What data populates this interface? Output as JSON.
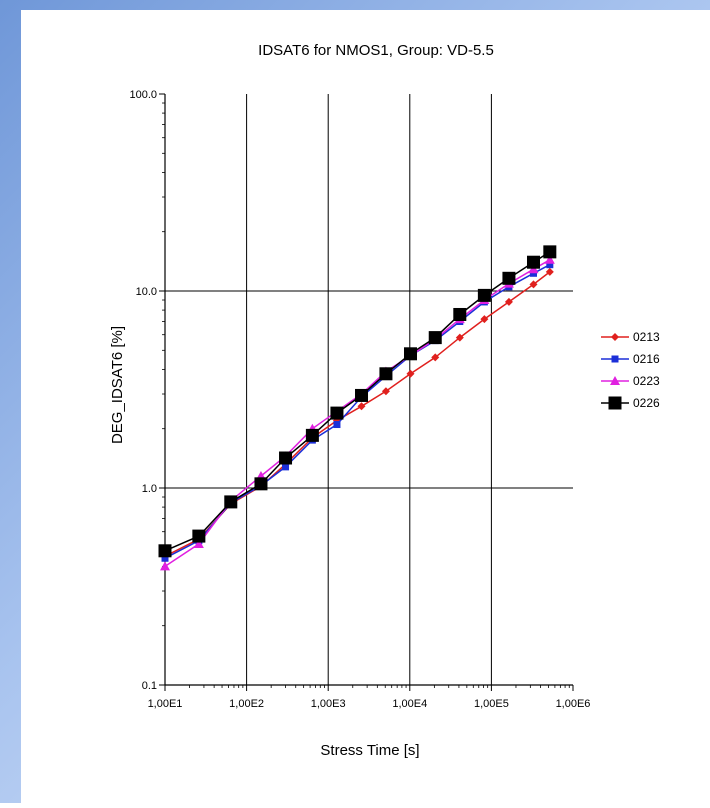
{
  "chart_data": {
    "type": "line",
    "title": "IDSAT6 for NMOS1, Group: VD-5.5",
    "xlabel": "Stress Time [s]",
    "ylabel": "DEG_IDSAT6 [%]",
    "x_scale": "log",
    "y_scale": "log",
    "xlim": [
      10,
      1000000
    ],
    "ylim": [
      0.1,
      100
    ],
    "x_ticks": [
      10,
      100,
      1000,
      10000,
      100000,
      1000000
    ],
    "x_tick_labels": [
      "1,00E1",
      "1,00E2",
      "1,00E3",
      "1,00E4",
      "1,00E5",
      "1,00E6"
    ],
    "y_ticks": [
      0.1,
      1,
      10,
      100
    ],
    "y_tick_labels": [
      "0.1",
      "1.0",
      "10.0",
      "100.0"
    ],
    "grid": true,
    "legend_position": "right",
    "series": [
      {
        "name": "0213",
        "color": "#e0201e",
        "marker": "diamond",
        "x": [
          10,
          26,
          64,
          150,
          300,
          640,
          1280,
          2560,
          5100,
          10200,
          20500,
          41000,
          82000,
          164000,
          328000,
          520000
        ],
        "values": [
          0.45,
          0.55,
          0.83,
          1.02,
          1.32,
          1.8,
          2.2,
          2.6,
          3.1,
          3.8,
          4.6,
          5.8,
          7.2,
          8.8,
          10.8,
          12.5
        ]
      },
      {
        "name": "0216",
        "color": "#1c2fd8",
        "marker": "square",
        "x": [
          10,
          26,
          64,
          150,
          300,
          640,
          1280,
          2560,
          5100,
          10200,
          20500,
          41000,
          82000,
          164000,
          328000,
          520000
        ],
        "values": [
          0.44,
          0.54,
          0.84,
          1.03,
          1.28,
          1.75,
          2.1,
          2.9,
          3.7,
          4.7,
          5.6,
          7.0,
          8.8,
          10.5,
          12.3,
          13.6
        ]
      },
      {
        "name": "0223",
        "color": "#e020e0",
        "marker": "triangle",
        "x": [
          10,
          26,
          64,
          150,
          300,
          640,
          1280,
          2560,
          5100,
          10200,
          20500,
          41000,
          82000,
          164000,
          328000,
          520000
        ],
        "values": [
          0.4,
          0.52,
          0.86,
          1.15,
          1.45,
          2.0,
          2.45,
          3.0,
          3.9,
          4.7,
          5.7,
          7.2,
          9.0,
          10.9,
          12.9,
          14.4
        ]
      },
      {
        "name": "0226",
        "color": "#000000",
        "marker": "square-large",
        "x": [
          10,
          26,
          64,
          150,
          300,
          640,
          1280,
          2560,
          5100,
          10200,
          20500,
          41000,
          82000,
          164000,
          328000,
          520000
        ],
        "values": [
          0.48,
          0.57,
          0.85,
          1.05,
          1.42,
          1.85,
          2.4,
          2.95,
          3.8,
          4.8,
          5.8,
          7.6,
          9.5,
          11.6,
          14.0,
          15.8
        ]
      }
    ]
  }
}
